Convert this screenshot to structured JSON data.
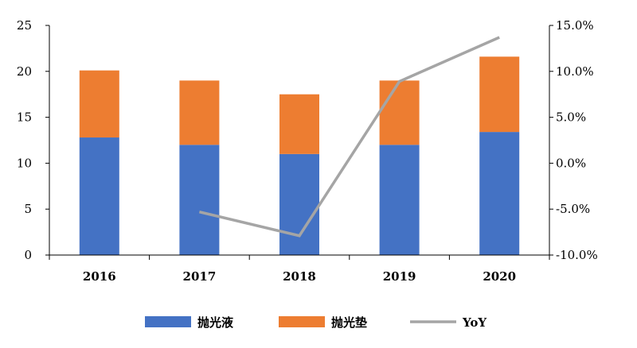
{
  "chart_data": {
    "type": "bar",
    "stacked": true,
    "categories": [
      "2016",
      "2017",
      "2018",
      "2019",
      "2020"
    ],
    "series": [
      {
        "name": "抛光液",
        "type": "bar",
        "axis": "left",
        "color": "#4472C4",
        "values": [
          12.8,
          12.0,
          11.0,
          12.0,
          13.4
        ]
      },
      {
        "name": "抛光垫",
        "type": "bar",
        "axis": "left",
        "color": "#ED7D31",
        "values": [
          7.3,
          7.0,
          6.5,
          7.0,
          8.2
        ]
      },
      {
        "name": "YoY",
        "type": "line",
        "axis": "right",
        "color": "#A5A5A5",
        "values": [
          null,
          -5.3,
          -7.9,
          8.9,
          13.7
        ]
      }
    ],
    "left_axis": {
      "ylim": [
        0,
        25
      ],
      "ticks": [
        "0",
        "5",
        "10",
        "15",
        "20",
        "25"
      ]
    },
    "right_axis": {
      "ylim": [
        -10,
        15
      ],
      "ticks": [
        "-10.0%",
        "-5.0%",
        "0.0%",
        "5.0%",
        "10.0%",
        "15.0%"
      ]
    },
    "grid": false,
    "legend": "bottom"
  }
}
